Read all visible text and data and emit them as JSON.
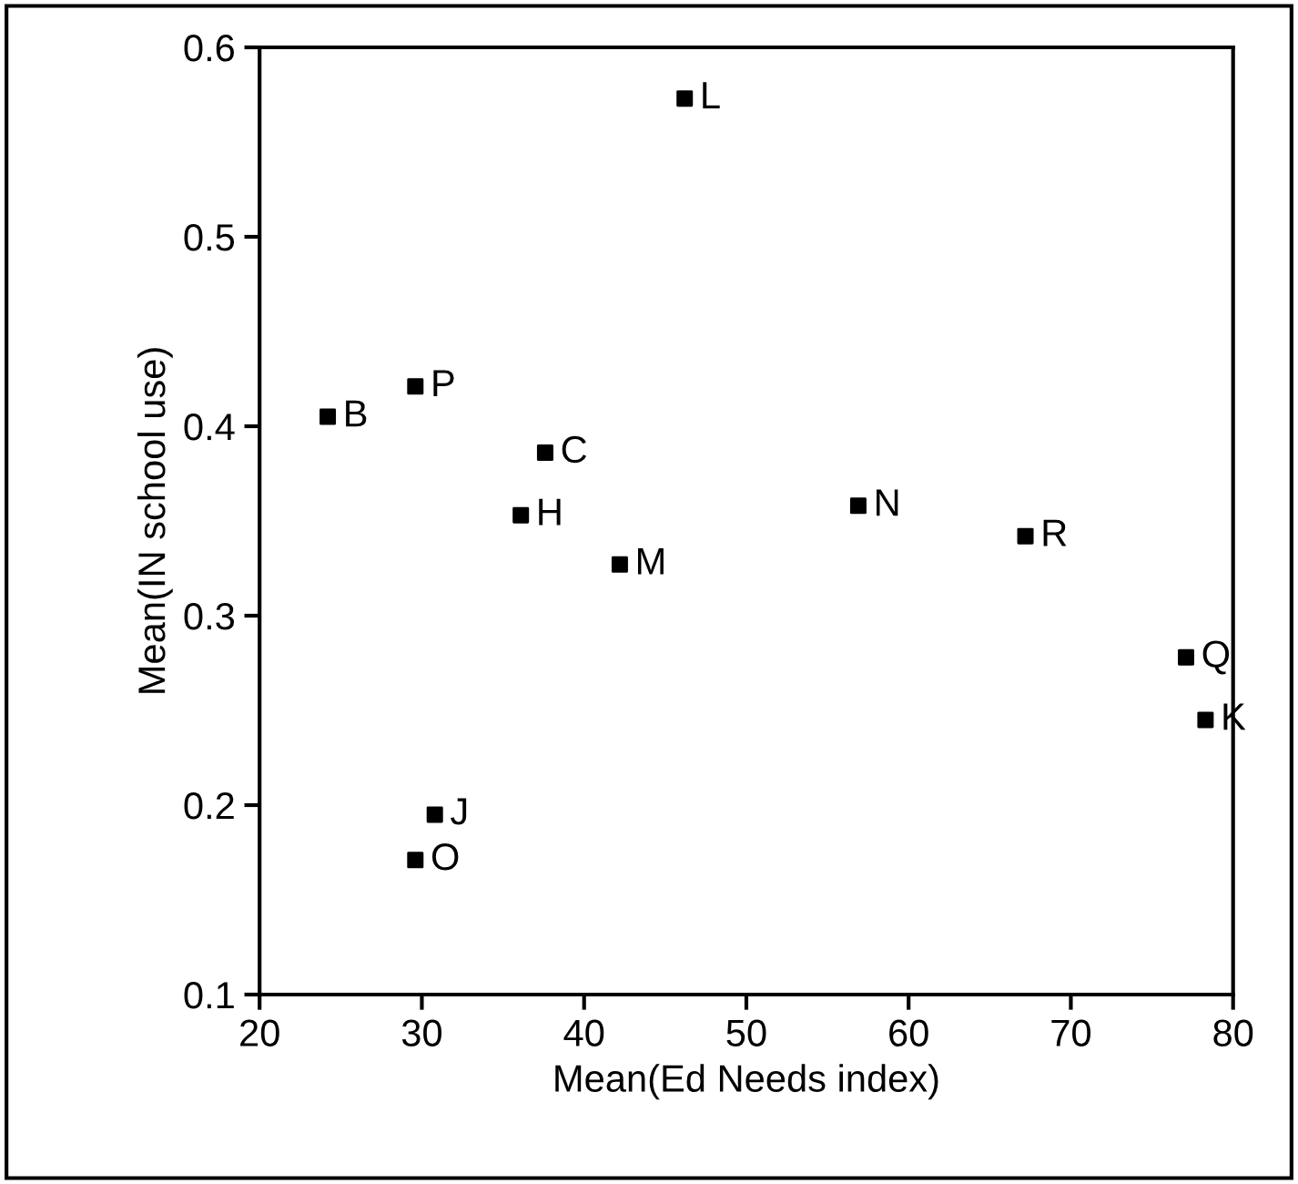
{
  "chart_data": {
    "type": "scatter",
    "xlabel": "Mean(Ed Needs index)",
    "ylabel": "Mean(IN school use)",
    "x": [
      46.2,
      24.2,
      29.6,
      37.6,
      36.1,
      42.2,
      56.9,
      67.2,
      77.1,
      78.3,
      30.8,
      29.6
    ],
    "series": [
      {
        "color": "#000000",
        "values": [
          0.573,
          0.405,
          0.421,
          0.386,
          0.353,
          0.327,
          0.358,
          0.342,
          0.278,
          0.245,
          0.195,
          0.171
        ]
      }
    ],
    "annotations": [
      {
        "text": "L",
        "x": 46.2,
        "y": 0.573
      },
      {
        "text": "B",
        "x": 24.2,
        "y": 0.405
      },
      {
        "text": "P",
        "x": 29.6,
        "y": 0.421
      },
      {
        "text": "C",
        "x": 37.6,
        "y": 0.386
      },
      {
        "text": "H",
        "x": 36.1,
        "y": 0.353
      },
      {
        "text": "M",
        "x": 42.2,
        "y": 0.327
      },
      {
        "text": "N",
        "x": 56.9,
        "y": 0.358
      },
      {
        "text": "R",
        "x": 67.2,
        "y": 0.342
      },
      {
        "text": "Q",
        "x": 77.1,
        "y": 0.278
      },
      {
        "text": "K",
        "x": 78.3,
        "y": 0.245
      },
      {
        "text": "J",
        "x": 30.8,
        "y": 0.195
      },
      {
        "text": "O",
        "x": 29.6,
        "y": 0.171
      }
    ],
    "xlim": [
      20,
      80
    ],
    "ylim": [
      0.1,
      0.6
    ],
    "xticks": [
      20,
      30,
      40,
      50,
      60,
      70,
      80
    ],
    "yticks": [
      0.1,
      0.2,
      0.3,
      0.4,
      0.5,
      0.6
    ],
    "marker": "square",
    "grid": false,
    "legend": false
  }
}
